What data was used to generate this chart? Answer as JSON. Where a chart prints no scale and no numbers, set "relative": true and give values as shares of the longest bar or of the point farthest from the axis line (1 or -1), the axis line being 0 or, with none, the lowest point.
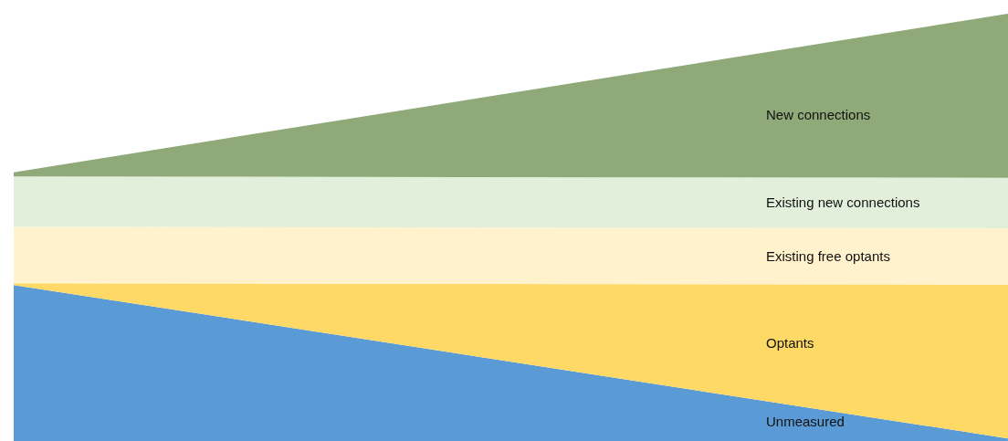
{
  "chart_data": {
    "type": "area",
    "relative": true,
    "stacked": true,
    "categories": [
      null,
      null
    ],
    "series": [
      {
        "name": "Unmeasured",
        "color": "#5b9bd5",
        "values": [
          0.365,
          0.006
        ]
      },
      {
        "name": "Optants",
        "color": "#ffd966",
        "values": [
          0.004,
          0.36
        ]
      },
      {
        "name": "Existing free optants",
        "color": "#fff2cc",
        "values": [
          0.132,
          0.132
        ]
      },
      {
        "name": "Existing new connections",
        "color": "#e2efda",
        "values": [
          0.118,
          0.118
        ]
      },
      {
        "name": "New connections",
        "color": "#8faa78",
        "values": [
          0.01,
          0.384
        ]
      }
    ]
  }
}
